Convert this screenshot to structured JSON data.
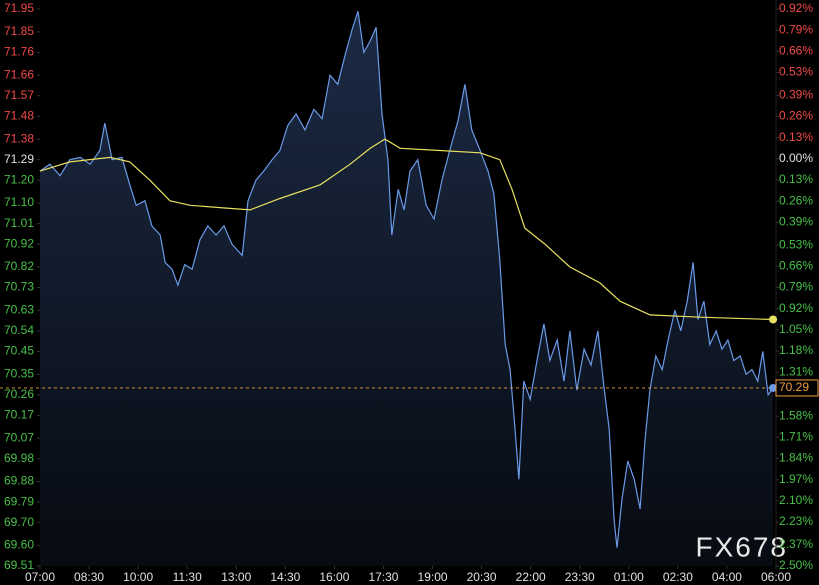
{
  "chart_data": {
    "type": "line",
    "watermark": "FX678",
    "up_color": "#f04848",
    "down_color": "#48c048",
    "flat_color": "#e0e0e0",
    "background": "#000000",
    "xlim": [
      0,
      15
    ],
    "xticks": [
      {
        "value": 0,
        "label": "07:00"
      },
      {
        "value": 1,
        "label": "08:30"
      },
      {
        "value": 2,
        "label": "10:00"
      },
      {
        "value": 3,
        "label": "11:30"
      },
      {
        "value": 4,
        "label": "13:00"
      },
      {
        "value": 5,
        "label": "14:30"
      },
      {
        "value": 6,
        "label": "16:00"
      },
      {
        "value": 7,
        "label": "17:30"
      },
      {
        "value": 8,
        "label": "19:00"
      },
      {
        "value": 9,
        "label": "20:30"
      },
      {
        "value": 10,
        "label": "22:00"
      },
      {
        "value": 11,
        "label": "23:30"
      },
      {
        "value": 12,
        "label": "01:00"
      },
      {
        "value": 13,
        "label": "02:30"
      },
      {
        "value": 14,
        "label": "04:00"
      },
      {
        "value": 15,
        "label": "06:00"
      }
    ],
    "ylim": [
      69.51,
      71.95
    ],
    "yticks": [
      71.95,
      71.85,
      71.76,
      71.66,
      71.57,
      71.48,
      71.38,
      71.29,
      {
        "value": 71.2,
        "label": "71.20"
      },
      {
        "value": 71.1,
        "label": "71.10"
      },
      71.01,
      70.92,
      70.82,
      70.73,
      70.63,
      70.54,
      70.45,
      70.35,
      70.26,
      70.17,
      70.07,
      69.98,
      69.88,
      69.79,
      {
        "value": 69.7,
        "label": "69.70"
      },
      {
        "value": 69.6,
        "label": "69.60"
      },
      69.51
    ],
    "y2lim": [
      -2.5,
      0.92
    ],
    "y2ticks": [
      {
        "value": 0.92,
        "label": "0.92%"
      },
      {
        "value": 0.79,
        "label": "0.79%"
      },
      {
        "value": 0.66,
        "label": "0.66%"
      },
      {
        "value": 0.53,
        "label": "0.53%"
      },
      {
        "value": 0.39,
        "label": "0.39%"
      },
      {
        "value": 0.26,
        "label": "0.26%"
      },
      {
        "value": 0.13,
        "label": "0.13%"
      },
      {
        "value": 0,
        "label": "0.00%"
      },
      {
        "value": -0.13,
        "label": "0.13%"
      },
      {
        "value": -0.26,
        "label": "0.26%"
      },
      {
        "value": -0.39,
        "label": "0.39%"
      },
      {
        "value": -0.53,
        "label": "0.53%"
      },
      {
        "value": -0.66,
        "label": "0.66%"
      },
      {
        "value": -0.79,
        "label": "0.79%"
      },
      {
        "value": -0.92,
        "label": "0.92%"
      },
      {
        "value": -1.05,
        "label": "1.05%"
      },
      {
        "value": -1.18,
        "label": "1.18%"
      },
      {
        "value": -1.31,
        "label": "1.31%"
      },
      {
        "value": -1.58,
        "label": "1.58%"
      },
      {
        "value": -1.71,
        "label": "1.71%"
      },
      {
        "value": -1.84,
        "label": "1.84%"
      },
      {
        "value": -1.97,
        "label": "1.97%"
      },
      {
        "value": -2.1,
        "label": "2.10%"
      },
      {
        "value": -2.23,
        "label": "2.23%"
      },
      {
        "value": -2.37,
        "label": "2.37%"
      },
      {
        "value": -2.5,
        "label": "2.50%"
      }
    ],
    "last_price": 70.29,
    "last_price_color": "#f0a040",
    "series": [
      {
        "color": "#6a9ae8",
        "fill": true,
        "x": [
          0.0,
          0.2,
          0.41,
          0.61,
          0.82,
          1.02,
          1.22,
          1.32,
          1.47,
          1.67,
          1.83,
          1.96,
          2.14,
          2.28,
          2.45,
          2.55,
          2.69,
          2.81,
          2.95,
          3.1,
          3.26,
          3.42,
          3.59,
          3.75,
          3.91,
          4.12,
          4.24,
          4.4,
          4.56,
          4.73,
          4.89,
          5.05,
          5.22,
          5.4,
          5.58,
          5.75,
          5.91,
          6.07,
          6.22,
          6.36,
          6.48,
          6.6,
          6.73,
          6.85,
          6.97,
          7.09,
          7.17,
          7.3,
          7.42,
          7.54,
          7.7,
          7.87,
          8.03,
          8.19,
          8.35,
          8.52,
          8.66,
          8.8,
          8.97,
          9.13,
          9.25,
          9.37,
          9.48,
          9.58,
          9.68,
          9.76,
          9.86,
          9.99,
          10.13,
          10.27,
          10.39,
          10.54,
          10.68,
          10.8,
          10.94,
          11.09,
          11.23,
          11.37,
          11.49,
          11.6,
          11.7,
          11.76,
          11.86,
          11.98,
          12.11,
          12.23,
          12.33,
          12.43,
          12.55,
          12.68,
          12.8,
          12.94,
          13.06,
          13.19,
          13.31,
          13.41,
          13.53,
          13.65,
          13.78,
          13.9,
          14.02,
          14.14,
          14.27,
          14.39,
          14.51,
          14.63,
          14.73,
          14.84,
          14.94
        ],
        "values": [
          71.24,
          71.27,
          71.22,
          71.29,
          71.3,
          71.27,
          71.33,
          71.45,
          71.29,
          71.3,
          71.18,
          71.09,
          71.11,
          71.0,
          70.96,
          70.84,
          70.81,
          70.74,
          70.83,
          70.81,
          70.94,
          71.0,
          70.96,
          71.0,
          70.92,
          70.87,
          71.11,
          71.2,
          71.24,
          71.29,
          71.33,
          71.44,
          71.49,
          71.42,
          71.51,
          71.47,
          71.66,
          71.62,
          71.75,
          71.86,
          71.94,
          71.76,
          71.81,
          71.87,
          71.49,
          71.29,
          70.96,
          71.16,
          71.07,
          71.24,
          71.29,
          71.09,
          71.03,
          71.2,
          71.33,
          71.46,
          71.62,
          71.42,
          71.33,
          71.24,
          71.14,
          70.85,
          70.48,
          70.37,
          70.11,
          69.89,
          70.32,
          70.24,
          70.41,
          70.57,
          70.41,
          70.5,
          70.32,
          70.54,
          70.28,
          70.46,
          70.39,
          70.54,
          70.3,
          70.11,
          69.71,
          69.59,
          69.8,
          69.97,
          69.89,
          69.76,
          70.06,
          70.28,
          70.43,
          70.37,
          70.5,
          70.63,
          70.54,
          70.67,
          70.84,
          70.59,
          70.67,
          70.48,
          70.54,
          70.46,
          70.5,
          70.41,
          70.43,
          70.35,
          70.37,
          70.32,
          70.45,
          70.26,
          70.29
        ]
      },
      {
        "color": "#e8e060",
        "fill": false,
        "x": [
          0.0,
          0.61,
          1.43,
          1.83,
          2.24,
          2.65,
          3.06,
          3.67,
          4.28,
          4.89,
          5.71,
          6.32,
          6.73,
          7.03,
          7.34,
          8.15,
          8.97,
          9.37,
          9.62,
          9.88,
          10.29,
          10.8,
          11.41,
          11.82,
          12.43,
          13.45,
          14.94
        ],
        "values": [
          71.24,
          71.28,
          71.3,
          71.28,
          71.2,
          71.11,
          71.09,
          71.08,
          71.07,
          71.12,
          71.18,
          71.27,
          71.34,
          71.38,
          71.34,
          71.33,
          71.32,
          71.29,
          71.16,
          70.99,
          70.92,
          70.82,
          70.75,
          70.67,
          70.61,
          70.6,
          70.59
        ]
      }
    ]
  }
}
